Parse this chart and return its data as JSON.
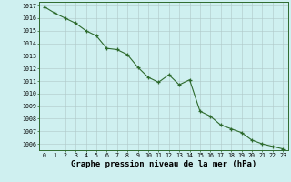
{
  "x": [
    0,
    1,
    2,
    3,
    4,
    5,
    6,
    7,
    8,
    9,
    10,
    11,
    12,
    13,
    14,
    15,
    16,
    17,
    18,
    19,
    20,
    21,
    22,
    23
  ],
  "y": [
    1016.9,
    1016.4,
    1016.0,
    1015.6,
    1015.0,
    1014.6,
    1013.6,
    1013.5,
    1013.1,
    1012.1,
    1011.3,
    1010.9,
    1011.5,
    1010.7,
    1011.1,
    1008.6,
    1008.2,
    1007.5,
    1007.2,
    1006.9,
    1006.3,
    1006.0,
    1005.8,
    1005.6
  ],
  "line_color": "#2d6a2d",
  "marker_color": "#2d6a2d",
  "background_color": "#cff0f0",
  "grid_color": "#b0c8c8",
  "xlabel": "Graphe pression niveau de la mer (hPa)",
  "ylim_min": 1005.5,
  "ylim_max": 1017.3,
  "xlim_min": -0.5,
  "xlim_max": 23.5,
  "yticks": [
    1006,
    1007,
    1008,
    1009,
    1010,
    1011,
    1012,
    1013,
    1014,
    1015,
    1016,
    1017
  ],
  "xticks": [
    0,
    1,
    2,
    3,
    4,
    5,
    6,
    7,
    8,
    9,
    10,
    11,
    12,
    13,
    14,
    15,
    16,
    17,
    18,
    19,
    20,
    21,
    22,
    23
  ],
  "tick_label_fontsize": 4.8,
  "xlabel_fontsize": 6.5,
  "spine_color": "#2d6a2d"
}
